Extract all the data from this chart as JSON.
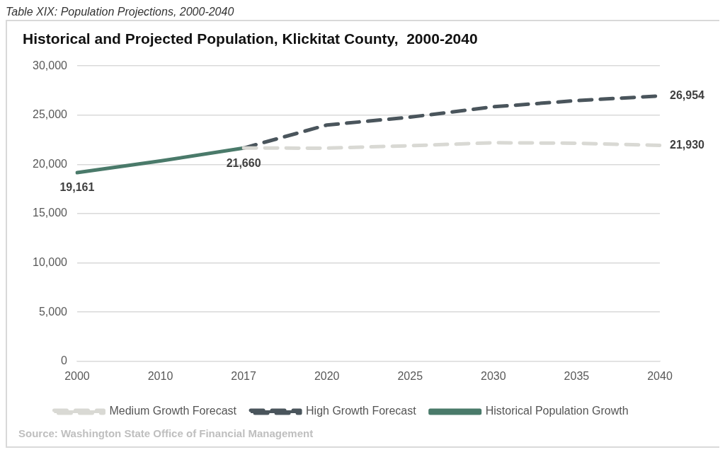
{
  "chart_data": {
    "type": "line",
    "title": "Historical and Projected Population, Klickitat County,  2000-2040",
    "categories": [
      "2000",
      "2010",
      "2017",
      "2020",
      "2025",
      "2030",
      "2035",
      "2040"
    ],
    "series": [
      {
        "name": "Medium Growth Forecast",
        "color": "#d9d9d4",
        "line_style": "dashed",
        "values": [
          null,
          null,
          21660,
          21650,
          21900,
          22200,
          22150,
          21930
        ],
        "value_labels": [
          null,
          null,
          null,
          null,
          null,
          null,
          null,
          "21,930"
        ]
      },
      {
        "name": "High Growth Forecast",
        "color": "#4a555c",
        "line_style": "dashed",
        "values": [
          null,
          null,
          21660,
          24000,
          24800,
          25850,
          26480,
          26954
        ],
        "value_labels": [
          null,
          null,
          null,
          null,
          null,
          null,
          null,
          "26,954"
        ]
      },
      {
        "name": "Historical Population Growth",
        "color": "#4a7a6a",
        "line_style": "solid",
        "values": [
          19161,
          20350,
          21660,
          null,
          null,
          null,
          null,
          null
        ],
        "value_labels": [
          "19,161",
          null,
          "21,660",
          null,
          null,
          null,
          null,
          null
        ]
      }
    ],
    "ylim": [
      0,
      30000
    ],
    "yticks": [
      {
        "value": 0,
        "label": "0"
      },
      {
        "value": 5000,
        "label": "5,000"
      },
      {
        "value": 10000,
        "label": "10,000"
      },
      {
        "value": 15000,
        "label": "15,000"
      },
      {
        "value": 20000,
        "label": "20,000"
      },
      {
        "value": 25000,
        "label": "25,000"
      },
      {
        "value": 30000,
        "label": "30,000"
      }
    ],
    "grid": "y",
    "legend": "bottom",
    "marker": "none",
    "annotations": [
      "Table XIX: Population Projections, 2000-2040",
      "Source: Washington State Office of Financial Management"
    ]
  }
}
